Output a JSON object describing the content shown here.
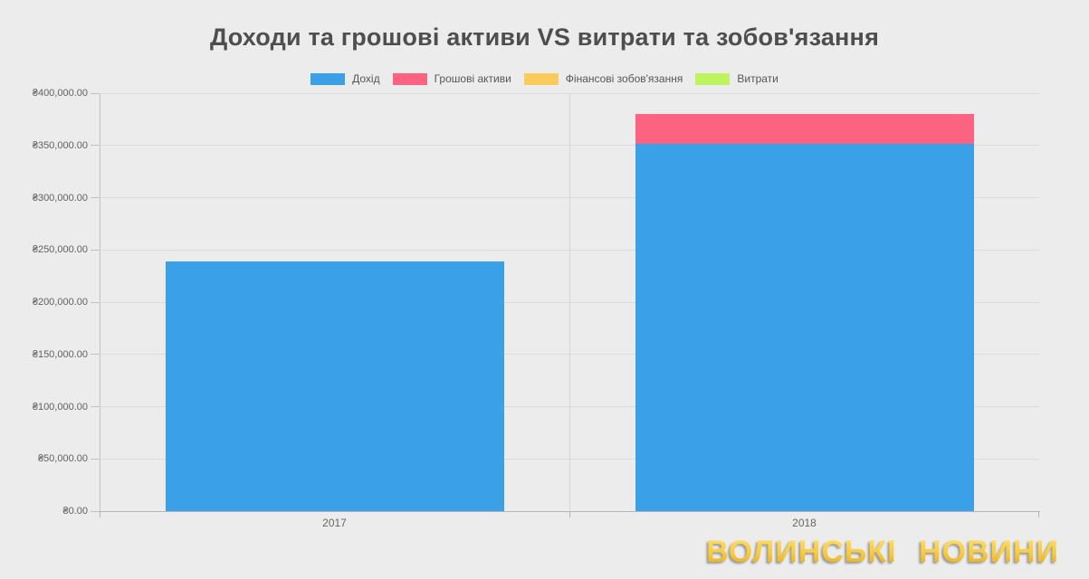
{
  "page": {
    "background": "#ececec"
  },
  "watermark": {
    "text": "ВОЛИНСЬКІ НОВИНИ"
  },
  "chart_data": {
    "type": "bar",
    "stacked": true,
    "title": "Доходи та грошові активи VS витрати та зобов'язання",
    "categories": [
      "2017",
      "2018"
    ],
    "series": [
      {
        "name": "Дохід",
        "color": "#3aa1e8",
        "values": [
          239000,
          351500
        ]
      },
      {
        "name": "Грошові активи",
        "color": "#fc6380",
        "values": [
          0,
          28500
        ]
      },
      {
        "name": "Фінансові зобов'язання",
        "color": "#fbcb5b",
        "values": [
          0,
          0
        ]
      },
      {
        "name": "Витрати",
        "color": "#bef45e",
        "values": [
          0,
          0
        ]
      }
    ],
    "ylim": [
      0,
      400000
    ],
    "y_tick_step": 50000,
    "y_tick_labels": [
      "₴0.00",
      "₴50,000.00",
      "₴100,000.00",
      "₴150,000.00",
      "₴200,000.00",
      "₴250,000.00",
      "₴300,000.00",
      "₴350,000.00",
      "₴400,000.00"
    ],
    "xlabel": "",
    "ylabel": "",
    "grid": true,
    "legend_position": "top",
    "currency_symbol": "₴"
  }
}
